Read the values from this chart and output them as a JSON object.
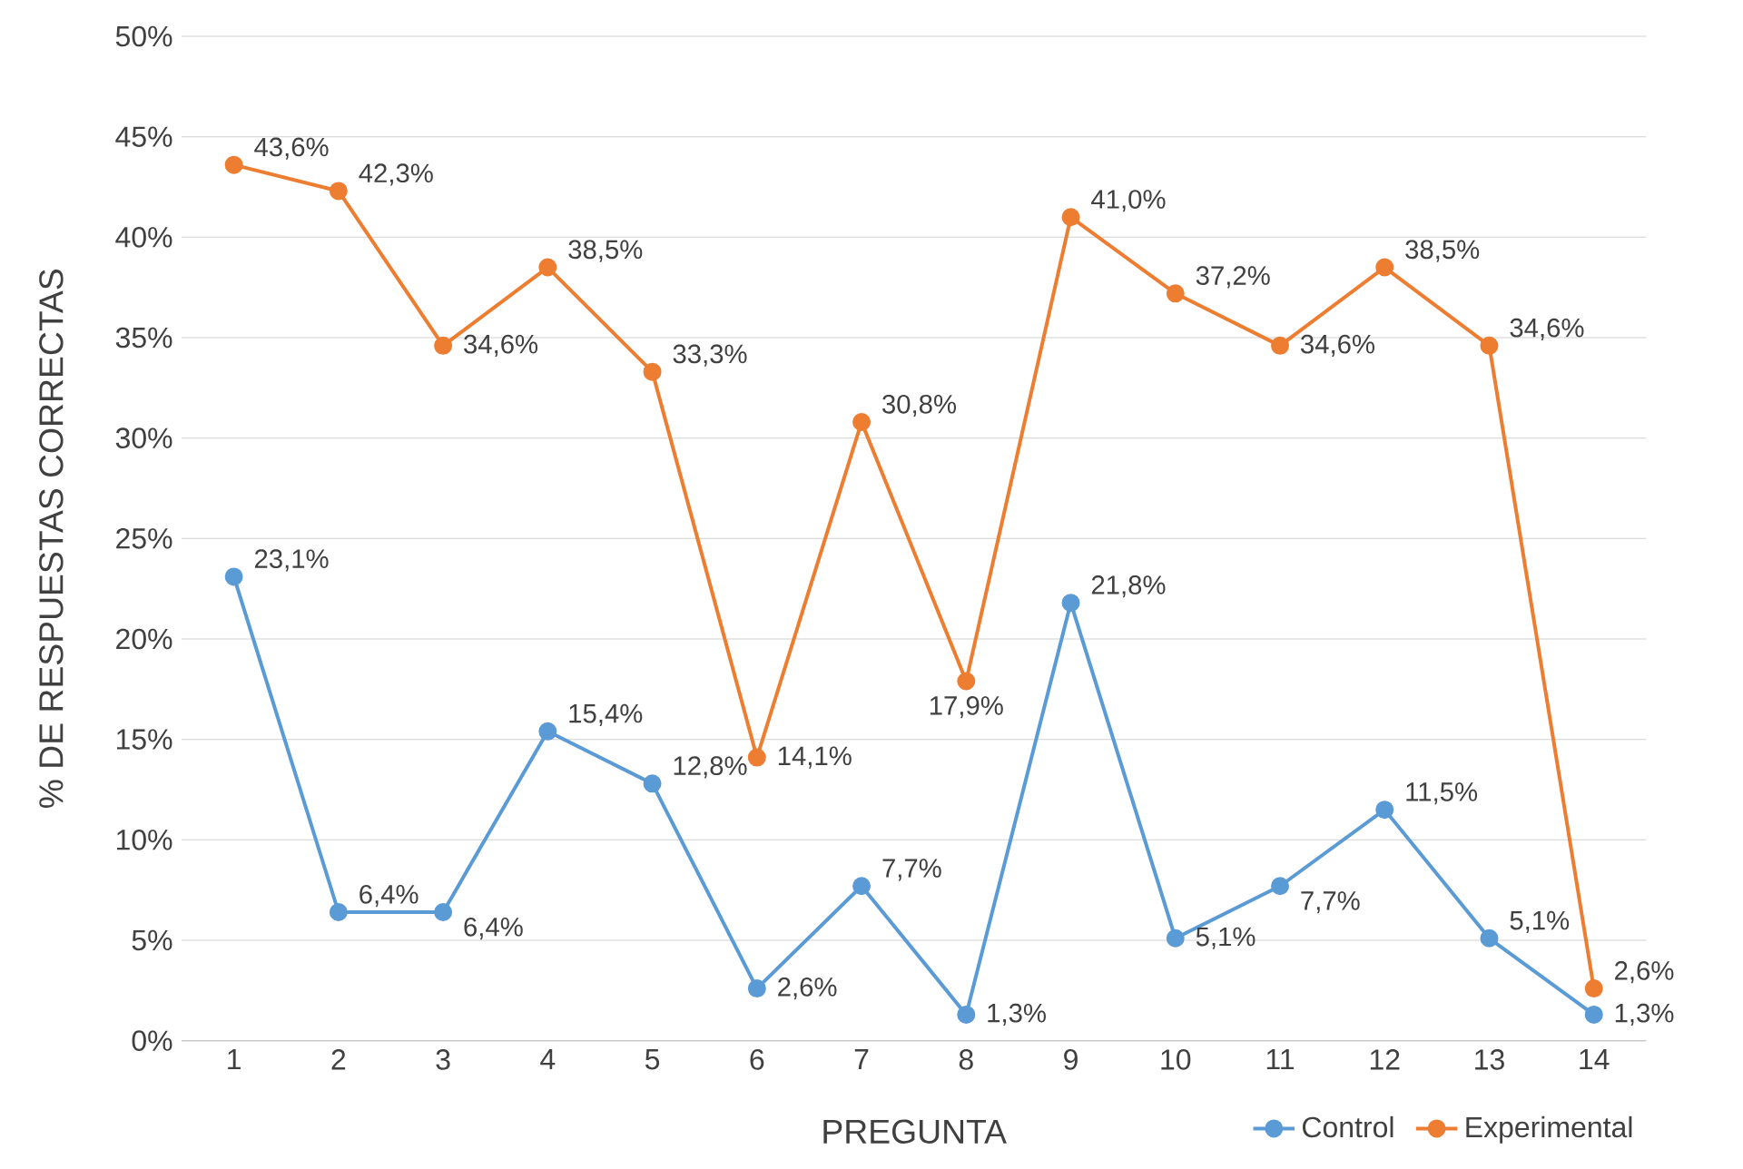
{
  "chart_data": {
    "type": "line",
    "xlabel": "PREGUNTA",
    "ylabel": "% DE RESPUESTAS CORRECTAS",
    "categories": [
      "1",
      "2",
      "3",
      "4",
      "5",
      "6",
      "7",
      "8",
      "9",
      "10",
      "11",
      "12",
      "13",
      "14"
    ],
    "series": [
      {
        "name": "Control",
        "color": "#5b9bd5",
        "values": [
          23.1,
          6.4,
          6.4,
          15.4,
          12.8,
          2.6,
          7.7,
          1.3,
          21.8,
          5.1,
          7.7,
          11.5,
          5.1,
          1.3
        ],
        "value_labels": [
          "23,1%",
          "6,4%",
          "6,4%",
          "15,4%",
          "12,8%",
          "2,6%",
          "7,7%",
          "1,3%",
          "21,8%",
          "5,1%",
          "7,7%",
          "11,5%",
          "5,1%",
          "1,3%"
        ]
      },
      {
        "name": "Experimental",
        "color": "#ed7d31",
        "values": [
          43.6,
          42.3,
          34.6,
          38.5,
          33.3,
          14.1,
          30.8,
          17.9,
          41.0,
          37.2,
          34.6,
          38.5,
          34.6,
          2.6
        ],
        "value_labels": [
          "43,6%",
          "42,3%",
          "34,6%",
          "38,5%",
          "33,3%",
          "14,1%",
          "30,8%",
          "17,9%",
          "41,0%",
          "37,2%",
          "34,6%",
          "38,5%",
          "34,6%",
          "2,6%"
        ]
      }
    ],
    "ylim": [
      0,
      50
    ],
    "yticks": [
      {
        "value": 0,
        "label": "0%"
      },
      {
        "value": 5,
        "label": "5%"
      },
      {
        "value": 10,
        "label": "10%"
      },
      {
        "value": 15,
        "label": "15%"
      },
      {
        "value": 20,
        "label": "20%"
      },
      {
        "value": 25,
        "label": "25%"
      },
      {
        "value": 30,
        "label": "30%"
      },
      {
        "value": 35,
        "label": "35%"
      },
      {
        "value": 40,
        "label": "40%"
      },
      {
        "value": 45,
        "label": "45%"
      },
      {
        "value": 50,
        "label": "50%"
      }
    ],
    "grid": "y",
    "legend": "bottom right",
    "marker": "circle",
    "line_style": "solid"
  }
}
